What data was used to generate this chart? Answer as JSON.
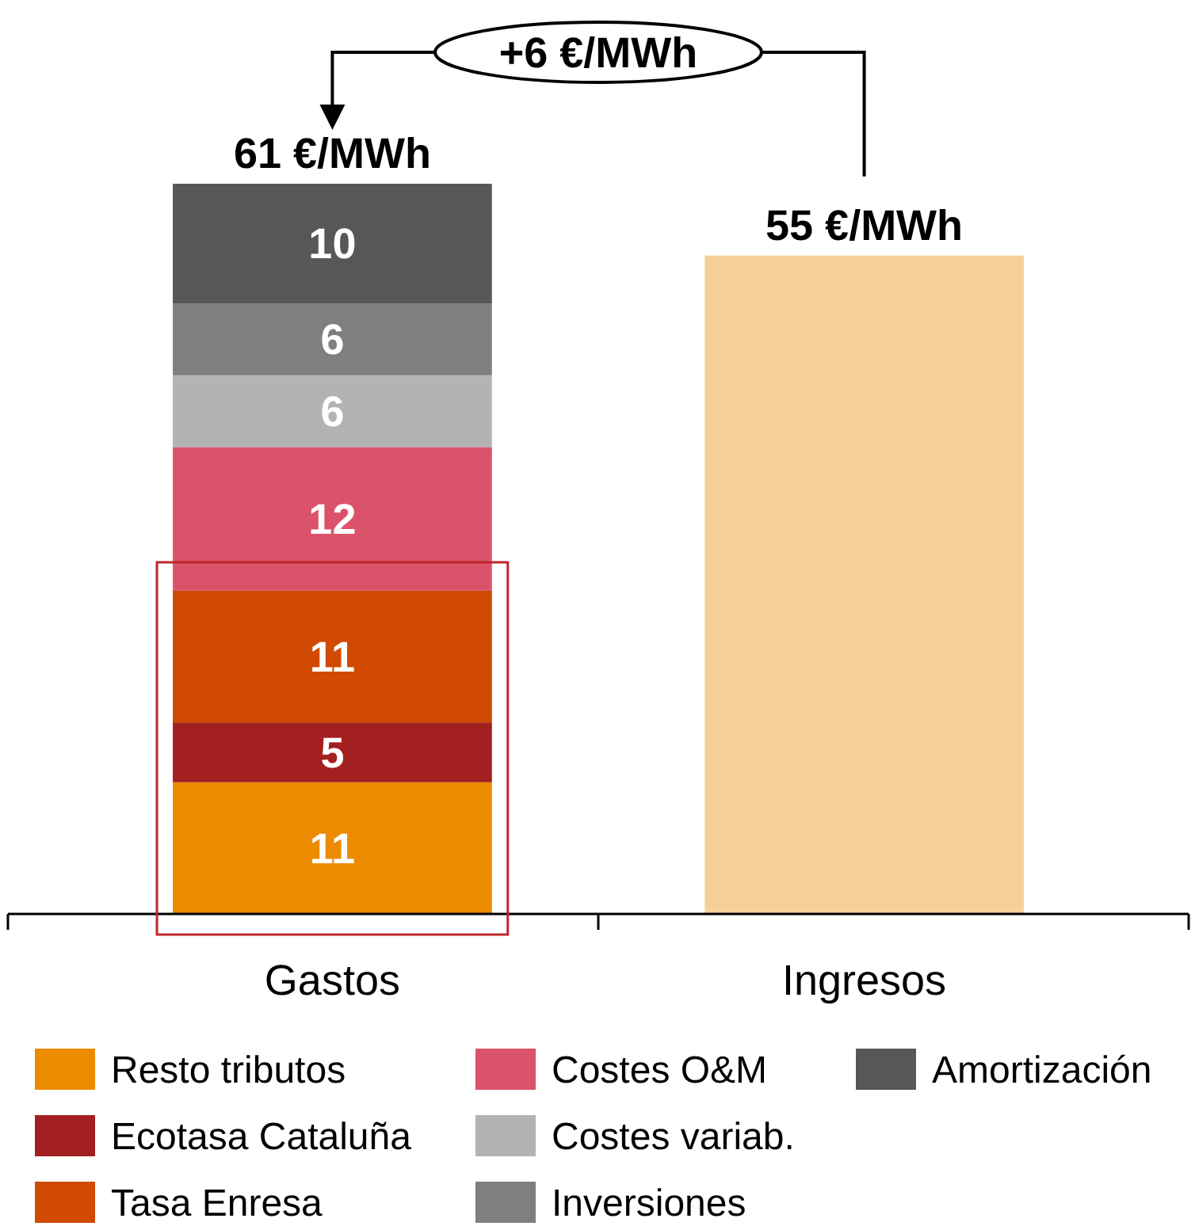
{
  "chart_data": {
    "type": "bar",
    "stacked": true,
    "categories": [
      "Gastos",
      "Ingresos"
    ],
    "series": [
      {
        "name": "Resto tributos",
        "color": "#ec8b00",
        "values": [
          11,
          null
        ],
        "value_labels": [
          "11",
          null
        ]
      },
      {
        "name": "Ecotasa Cataluña",
        "color": "#a32020",
        "values": [
          5,
          null
        ],
        "value_labels": [
          "5",
          null
        ]
      },
      {
        "name": "Tasa Enresa",
        "color": "#d04a02",
        "values": [
          11,
          null
        ],
        "value_labels": [
          "11",
          null
        ]
      },
      {
        "name": "Costes O&M",
        "color": "#db536a",
        "values": [
          12,
          null
        ],
        "value_labels": [
          "12",
          null
        ]
      },
      {
        "name": "Costes variab.",
        "color": "#b3b3b3",
        "values": [
          6,
          null
        ],
        "value_labels": [
          "6",
          null
        ]
      },
      {
        "name": "Inversiones",
        "color": "#7f7f7f",
        "values": [
          6,
          null
        ],
        "value_labels": [
          "6",
          null
        ]
      },
      {
        "name": "Amortización",
        "color": "#575757",
        "values": [
          10,
          null
        ],
        "value_labels": [
          "10",
          null
        ]
      },
      {
        "color": "#f6d09a",
        "values": [
          null,
          55
        ]
      }
    ],
    "totals": [
      "61 €/MWh",
      "55 €/MWh"
    ],
    "annotations": [
      "+6 €/MWh"
    ],
    "legend": "bottom"
  }
}
